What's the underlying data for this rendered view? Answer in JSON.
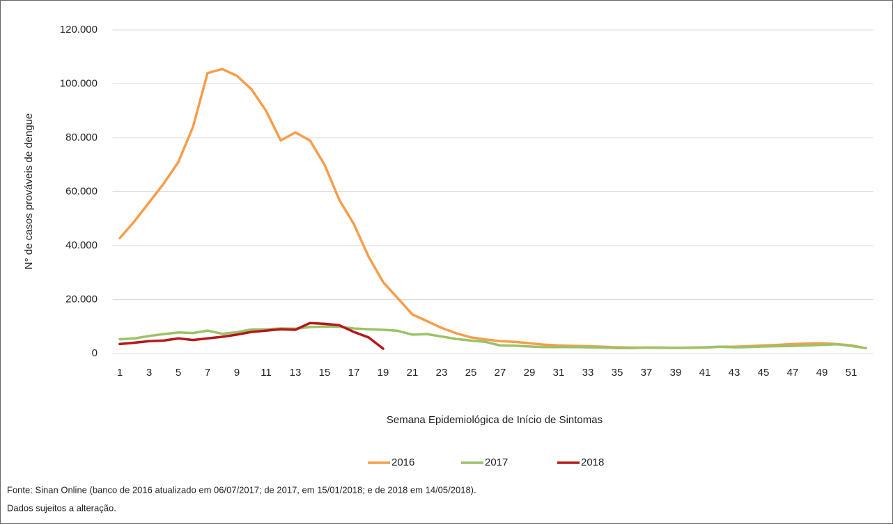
{
  "chart_data": {
    "type": "line",
    "x": [
      1,
      2,
      3,
      4,
      5,
      6,
      7,
      8,
      9,
      10,
      11,
      12,
      13,
      14,
      15,
      16,
      17,
      18,
      19,
      20,
      21,
      22,
      23,
      24,
      25,
      26,
      27,
      28,
      29,
      30,
      31,
      32,
      33,
      34,
      35,
      36,
      37,
      38,
      39,
      40,
      41,
      42,
      43,
      44,
      45,
      46,
      47,
      48,
      49,
      50,
      51,
      52
    ],
    "xlim": [
      0.5,
      52.5
    ],
    "xticks": [
      1,
      3,
      5,
      7,
      9,
      11,
      13,
      15,
      17,
      19,
      21,
      23,
      25,
      27,
      29,
      31,
      33,
      35,
      37,
      39,
      41,
      43,
      45,
      47,
      49,
      51
    ],
    "ylim": [
      0,
      120000
    ],
    "yticks": [
      0,
      {
        "value": 20000,
        "label": "20.000"
      },
      {
        "value": 40000,
        "label": "40.000"
      },
      {
        "value": 60000,
        "label": "60.000"
      },
      {
        "value": 80000,
        "label": "80.000"
      },
      {
        "value": 100000,
        "label": "100.000"
      },
      {
        "value": 120000,
        "label": "120.000"
      }
    ],
    "grid": true,
    "x_label": "Semana Epidemiológica de Início de Sintomas",
    "y_label": "N° de casos prováveis de dengue",
    "legend": "bottom",
    "series": [
      {
        "name": "2016",
        "color": "#f79d4a",
        "values": [
          42800,
          49000,
          56000,
          63000,
          71000,
          84000,
          104000,
          105500,
          103000,
          98000,
          90000,
          79000,
          82000,
          79000,
          70000,
          57000,
          48000,
          36000,
          26500,
          20500,
          14500,
          12000,
          9500,
          7500,
          6000,
          5200,
          4600,
          4300,
          3800,
          3300,
          3000,
          2800,
          2700,
          2500,
          2300,
          2200,
          2200,
          2100,
          2100,
          2100,
          2200,
          2500,
          2500,
          2700,
          3000,
          3200,
          3500,
          3700,
          3800,
          3500,
          3000,
          2000
        ]
      },
      {
        "name": "2017",
        "color": "#9bc267",
        "values": [
          5300,
          5600,
          6500,
          7200,
          7800,
          7600,
          8500,
          7300,
          7900,
          8900,
          9000,
          9300,
          9200,
          9800,
          10000,
          9900,
          9300,
          9000,
          8800,
          8400,
          7000,
          7200,
          6300,
          5400,
          4800,
          4300,
          3000,
          2900,
          2600,
          2400,
          2400,
          2400,
          2300,
          2200,
          2000,
          2000,
          2200,
          2200,
          2100,
          2200,
          2300,
          2500,
          2300,
          2400,
          2600,
          2700,
          2800,
          3000,
          3200,
          3400,
          2800,
          2000
        ]
      },
      {
        "name": "2018",
        "color": "#b5171b",
        "values": [
          3500,
          4000,
          4600,
          4800,
          5600,
          5000,
          5600,
          6200,
          7000,
          8000,
          8500,
          9000,
          8800,
          11300,
          11000,
          10500,
          8000,
          6000,
          1800,
          null,
          null,
          null,
          null,
          null,
          null,
          null,
          null,
          null,
          null,
          null,
          null,
          null,
          null,
          null,
          null,
          null,
          null,
          null,
          null,
          null,
          null,
          null,
          null,
          null,
          null,
          null,
          null,
          null,
          null,
          null,
          null,
          null
        ]
      }
    ],
    "notes": [
      "Fonte: Sinan Online (banco de 2016 atualizado em 06/07/2017; de 2017, em 15/01/2018; e de 2018 em 14/05/2018).",
      "Dados sujeitos a alteração."
    ]
  }
}
